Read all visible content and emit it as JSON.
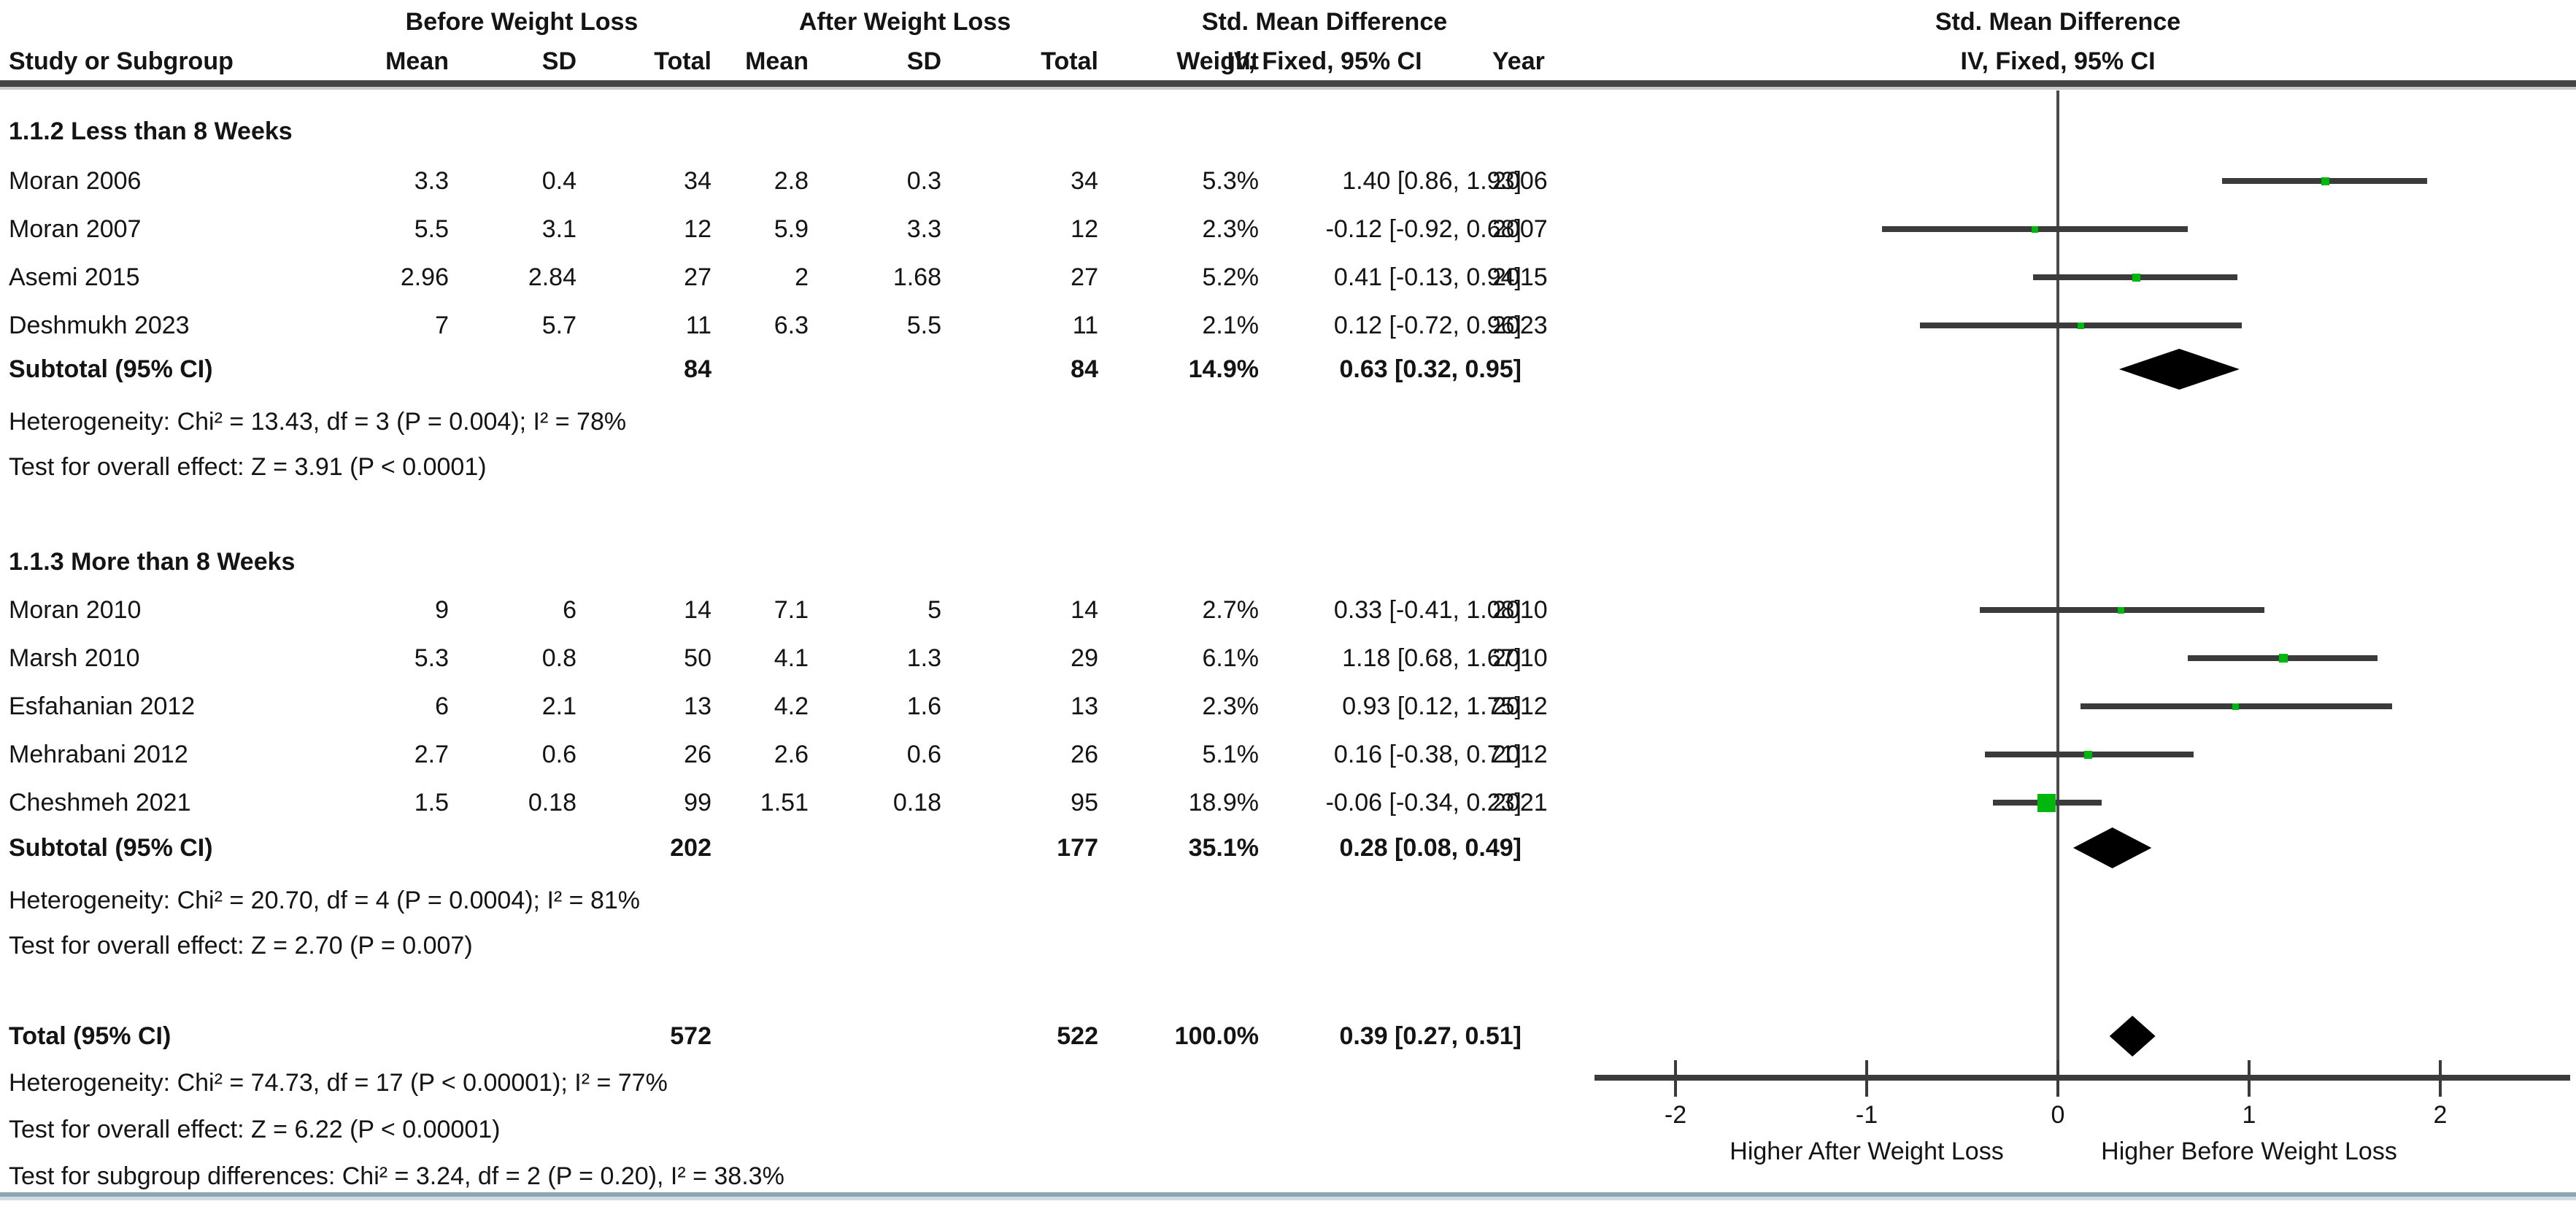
{
  "chart_data": {
    "type": "forest",
    "header": {
      "group_before": "Before Weight Loss",
      "group_after": "After Weight Loss",
      "smd_table": "Std. Mean Difference",
      "col_study": "Study or Subgroup",
      "col_mean_before": "Mean",
      "col_sd_before": "SD",
      "col_total_before": "Total",
      "col_mean_after": "Mean",
      "col_sd_after": "SD",
      "col_total_after": "Total",
      "col_weight": "Weight",
      "col_ci": "IV, Fixed, 95% CI",
      "col_year": "Year",
      "plot_title": "Std. Mean Difference",
      "plot_subtitle": "IV, Fixed, 95% CI"
    },
    "axis": {
      "ticks": [
        "-2",
        "-1",
        "0",
        "1",
        "2"
      ],
      "tick_values": [
        -2,
        -1,
        0,
        1,
        2
      ],
      "min": -2.42,
      "max": 2.68,
      "label_left": "Higher After Weight Loss",
      "label_right": "Higher Before Weight Loss"
    },
    "sections": [
      {
        "title": "1.1.2 Less than 8 Weeks",
        "rows": [
          {
            "study": "Moran 2006",
            "mean1": "3.3",
            "sd1": "0.4",
            "total1": "34",
            "mean2": "2.8",
            "sd2": "0.3",
            "total2": "34",
            "weight": "5.3%",
            "ci_text": "1.40 [0.86, 1.93]",
            "year": "2006",
            "est": 1.4,
            "lo": 0.86,
            "hi": 1.93,
            "weight_val": 5.3
          },
          {
            "study": "Moran 2007",
            "mean1": "5.5",
            "sd1": "3.1",
            "total1": "12",
            "mean2": "5.9",
            "sd2": "3.3",
            "total2": "12",
            "weight": "2.3%",
            "ci_text": "-0.12 [-0.92, 0.68]",
            "year": "2007",
            "est": -0.12,
            "lo": -0.92,
            "hi": 0.68,
            "weight_val": 2.3
          },
          {
            "study": "Asemi 2015",
            "mean1": "2.96",
            "sd1": "2.84",
            "total1": "27",
            "mean2": "2",
            "sd2": "1.68",
            "total2": "27",
            "weight": "5.2%",
            "ci_text": "0.41 [-0.13, 0.94]",
            "year": "2015",
            "est": 0.41,
            "lo": -0.13,
            "hi": 0.94,
            "weight_val": 5.2
          },
          {
            "study": "Deshmukh 2023",
            "mean1": "7",
            "sd1": "5.7",
            "total1": "11",
            "mean2": "6.3",
            "sd2": "5.5",
            "total2": "11",
            "weight": "2.1%",
            "ci_text": "0.12 [-0.72, 0.96]",
            "year": "2023",
            "est": 0.12,
            "lo": -0.72,
            "hi": 0.96,
            "weight_val": 2.1
          }
        ],
        "subtotal": {
          "label": "Subtotal (95% CI)",
          "total1": "84",
          "total2": "84",
          "weight": "14.9%",
          "ci_text": "0.63 [0.32, 0.95]",
          "est": 0.63,
          "lo": 0.32,
          "hi": 0.95
        },
        "stats": [
          "Heterogeneity: Chi² = 13.43, df = 3 (P = 0.004); I² = 78%",
          "Test for overall effect: Z = 3.91 (P < 0.0001)"
        ]
      },
      {
        "title": "1.1.3 More than 8 Weeks",
        "rows": [
          {
            "study": "Moran 2010",
            "mean1": "9",
            "sd1": "6",
            "total1": "14",
            "mean2": "7.1",
            "sd2": "5",
            "total2": "14",
            "weight": "2.7%",
            "ci_text": "0.33 [-0.41, 1.08]",
            "year": "2010",
            "est": 0.33,
            "lo": -0.41,
            "hi": 1.08,
            "weight_val": 2.7
          },
          {
            "study": "Marsh 2010",
            "mean1": "5.3",
            "sd1": "0.8",
            "total1": "50",
            "mean2": "4.1",
            "sd2": "1.3",
            "total2": "29",
            "weight": "6.1%",
            "ci_text": "1.18 [0.68, 1.67]",
            "year": "2010",
            "est": 1.18,
            "lo": 0.68,
            "hi": 1.67,
            "weight_val": 6.1
          },
          {
            "study": "Esfahanian 2012",
            "mean1": "6",
            "sd1": "2.1",
            "total1": "13",
            "mean2": "4.2",
            "sd2": "1.6",
            "total2": "13",
            "weight": "2.3%",
            "ci_text": "0.93 [0.12, 1.75]",
            "year": "2012",
            "est": 0.93,
            "lo": 0.12,
            "hi": 1.75,
            "weight_val": 2.3
          },
          {
            "study": "Mehrabani 2012",
            "mean1": "2.7",
            "sd1": "0.6",
            "total1": "26",
            "mean2": "2.6",
            "sd2": "0.6",
            "total2": "26",
            "weight": "5.1%",
            "ci_text": "0.16 [-0.38, 0.71]",
            "year": "2012",
            "est": 0.16,
            "lo": -0.38,
            "hi": 0.71,
            "weight_val": 5.1
          },
          {
            "study": "Cheshmeh 2021",
            "mean1": "1.5",
            "sd1": "0.18",
            "total1": "99",
            "mean2": "1.51",
            "sd2": "0.18",
            "total2": "95",
            "weight": "18.9%",
            "ci_text": "-0.06 [-0.34, 0.23]",
            "year": "2021",
            "est": -0.06,
            "lo": -0.34,
            "hi": 0.23,
            "weight_val": 18.9
          }
        ],
        "subtotal": {
          "label": "Subtotal (95% CI)",
          "total1": "202",
          "total2": "177",
          "weight": "35.1%",
          "ci_text": "0.28 [0.08, 0.49]",
          "est": 0.28,
          "lo": 0.08,
          "hi": 0.49
        },
        "stats": [
          "Heterogeneity: Chi² = 20.70, df = 4 (P = 0.0004); I² = 81%",
          "Test for overall effect: Z = 2.70 (P = 0.007)"
        ]
      }
    ],
    "total": {
      "label": "Total (95% CI)",
      "total1": "572",
      "total2": "522",
      "weight": "100.0%",
      "ci_text": "0.39 [0.27, 0.51]",
      "est": 0.39,
      "lo": 0.27,
      "hi": 0.51,
      "stats": [
        "Heterogeneity: Chi² = 74.73, df = 17 (P < 0.00001); I² = 77%",
        "Test for overall effect: Z = 6.22 (P < 0.00001)",
        "Test for subgroup differences: Chi² = 3.24, df = 2 (P = 0.20), I² = 38.3%"
      ]
    },
    "colors": {
      "marker_green": "#00b80d",
      "diamond_black": "#000000",
      "line_dark": "#3b3b3b",
      "bottom_border": "#8ca6b4"
    }
  }
}
